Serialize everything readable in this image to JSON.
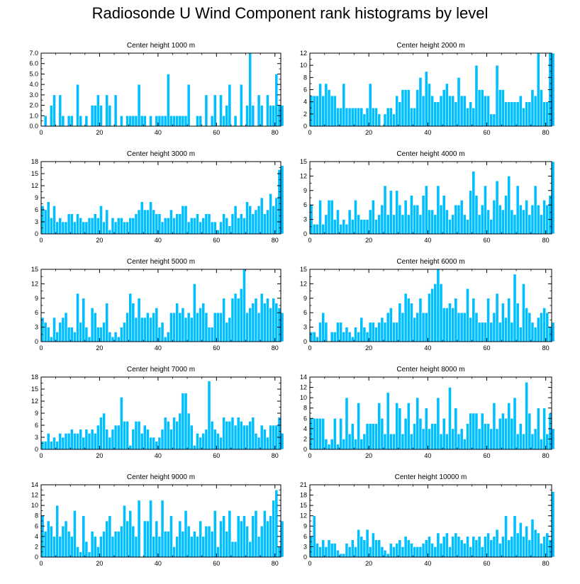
{
  "title": "Radiosonde U Wind Component rank histograms by level",
  "colors": {
    "bar": "#00bfff",
    "bar_edge": "#ffffff",
    "axis": "#000000"
  },
  "chart_data": [
    {
      "type": "bar",
      "title": "Center height 1000 m",
      "xlim": [
        0,
        82
      ],
      "ylim": [
        0,
        7
      ],
      "xticks": [
        0,
        20,
        40,
        60,
        80
      ],
      "yticks": [
        0,
        1,
        2,
        3,
        4,
        5,
        6,
        7
      ],
      "ytick_labels": [
        "0.0",
        "1.0",
        "2.0",
        "3.0",
        "4.0",
        "5.0",
        "6.0",
        "7.0"
      ],
      "values": [
        0,
        1,
        0,
        2,
        3,
        0,
        3,
        1,
        0,
        1,
        1,
        0,
        4,
        1,
        0,
        1,
        0,
        2,
        2,
        3,
        2,
        0,
        3,
        2,
        0,
        3,
        0,
        1,
        0,
        1,
        1,
        1,
        1,
        4,
        1,
        1,
        0,
        1,
        0,
        1,
        1,
        1,
        1,
        5,
        1,
        1,
        1,
        1,
        1,
        1,
        4,
        0,
        0,
        1,
        1,
        0,
        3,
        0,
        1,
        3,
        0,
        3,
        1,
        2,
        4,
        0,
        1,
        0,
        4,
        0,
        2,
        7,
        2,
        0,
        3,
        2,
        0,
        3,
        2,
        2,
        5,
        2,
        2
      ]
    },
    {
      "type": "bar",
      "title": "Center height 2000 m",
      "xlim": [
        0,
        82
      ],
      "ylim": [
        0,
        12
      ],
      "xticks": [
        0,
        20,
        40,
        60,
        80
      ],
      "yticks": [
        0,
        2,
        4,
        6,
        8,
        10,
        12
      ],
      "ytick_labels": [
        "0",
        "2",
        "4",
        "6",
        "8",
        "10",
        "12"
      ],
      "values": [
        5,
        5,
        5,
        7,
        5,
        7,
        6,
        5,
        5,
        3,
        3,
        7,
        3,
        3,
        3,
        3,
        3,
        3,
        2,
        3,
        7,
        3,
        3,
        2,
        0,
        2,
        3,
        3,
        2,
        5,
        4,
        6,
        6,
        6,
        3,
        3,
        6,
        8,
        5,
        9,
        7,
        5,
        4,
        4,
        5,
        6,
        7,
        5,
        5,
        4,
        8,
        5,
        5,
        3,
        4,
        3,
        10,
        6,
        6,
        5,
        5,
        2,
        2,
        10,
        6,
        6,
        4,
        4,
        4,
        4,
        4,
        5,
        3,
        4,
        4,
        6,
        5,
        12,
        6,
        4,
        4,
        12,
        12
      ]
    },
    {
      "type": "bar",
      "title": "Center height 3000 m",
      "xlim": [
        0,
        82
      ],
      "ylim": [
        0,
        18
      ],
      "xticks": [
        0,
        20,
        40,
        60,
        80
      ],
      "yticks": [
        0,
        3,
        6,
        9,
        12,
        15,
        18
      ],
      "ytick_labels": [
        "0",
        "3",
        "6",
        "9",
        "12",
        "15",
        "18"
      ],
      "values": [
        7,
        6,
        8,
        4,
        7,
        3,
        4,
        3,
        3,
        5,
        5,
        3,
        5,
        4,
        3,
        3,
        4,
        4,
        5,
        4,
        7,
        3,
        6,
        1,
        4,
        3,
        4,
        4,
        3,
        3,
        4,
        4,
        5,
        6,
        8,
        6,
        6,
        8,
        6,
        5,
        5,
        3,
        4,
        4,
        6,
        4,
        5,
        5,
        7,
        7,
        3,
        4,
        4,
        5,
        3,
        4,
        5,
        5,
        3,
        3,
        1,
        3,
        5,
        4,
        2,
        5,
        7,
        4,
        5,
        4,
        8,
        7,
        5,
        6,
        7,
        9,
        5,
        6,
        10,
        7,
        9,
        16,
        17
      ]
    },
    {
      "type": "bar",
      "title": "Center height 4000 m",
      "xlim": [
        0,
        82
      ],
      "ylim": [
        0,
        15
      ],
      "xticks": [
        0,
        20,
        40,
        60,
        80
      ],
      "yticks": [
        0,
        3,
        6,
        9,
        12,
        15
      ],
      "ytick_labels": [
        "0",
        "3",
        "6",
        "9",
        "12",
        "15"
      ],
      "values": [
        6,
        2,
        2,
        7,
        2,
        4,
        7,
        7,
        3,
        5,
        2,
        3,
        2,
        5,
        3,
        7,
        4,
        3,
        3,
        3,
        5,
        7,
        3,
        4,
        6,
        10,
        4,
        9,
        4,
        9,
        6,
        4,
        7,
        4,
        8,
        6,
        6,
        4,
        8,
        10,
        5,
        5,
        4,
        10,
        6,
        8,
        5,
        3,
        4,
        6,
        6,
        7,
        4,
        3,
        9,
        13,
        8,
        4,
        6,
        10,
        5,
        3,
        7,
        11,
        6,
        5,
        8,
        12,
        5,
        4,
        10,
        6,
        5,
        7,
        4,
        6,
        10,
        6,
        4,
        7,
        6,
        8,
        15
      ]
    },
    {
      "type": "bar",
      "title": "Center height 5000 m",
      "xlim": [
        0,
        82
      ],
      "ylim": [
        0,
        15
      ],
      "xticks": [
        0,
        20,
        40,
        60,
        80
      ],
      "yticks": [
        0,
        3,
        6,
        9,
        12,
        15
      ],
      "ytick_labels": [
        "0",
        "3",
        "6",
        "9",
        "12",
        "15"
      ],
      "values": [
        5,
        4,
        3,
        1,
        5,
        2,
        4,
        5,
        6,
        3,
        3,
        2,
        10,
        4,
        9,
        3,
        1,
        7,
        6,
        3,
        3,
        4,
        8,
        2,
        1,
        2,
        1,
        3,
        4,
        6,
        10,
        8,
        5,
        9,
        5,
        5,
        6,
        5,
        6,
        7,
        3,
        4,
        1,
        2,
        6,
        6,
        8,
        6,
        7,
        5,
        6,
        5,
        12,
        6,
        7,
        8,
        6,
        3,
        3,
        6,
        6,
        6,
        9,
        4,
        5,
        9,
        10,
        9,
        11,
        15,
        6,
        7,
        8,
        9,
        6,
        10,
        8,
        9,
        7,
        9,
        8,
        7,
        6
      ]
    },
    {
      "type": "bar",
      "title": "Center height 6000 m",
      "xlim": [
        0,
        82
      ],
      "ylim": [
        0,
        15
      ],
      "xticks": [
        0,
        20,
        40,
        60,
        80
      ],
      "yticks": [
        0,
        3,
        6,
        9,
        12,
        15
      ],
      "ytick_labels": [
        "0",
        "3",
        "6",
        "9",
        "12",
        "15"
      ],
      "values": [
        2,
        2,
        1,
        4,
        6,
        4,
        0,
        2,
        2,
        4,
        4,
        2,
        3,
        2,
        1,
        3,
        2,
        5,
        3,
        2,
        4,
        4,
        3,
        4,
        5,
        4,
        6,
        7,
        4,
        4,
        8,
        6,
        10,
        9,
        8,
        5,
        6,
        9,
        6,
        6,
        10,
        11,
        12,
        15,
        12,
        7,
        7,
        8,
        7,
        9,
        6,
        6,
        6,
        11,
        5,
        9,
        6,
        4,
        4,
        4,
        9,
        4,
        6,
        10,
        4,
        8,
        5,
        9,
        4,
        14,
        8,
        3,
        12,
        7,
        6,
        4,
        3,
        5,
        6,
        7,
        6,
        3,
        4
      ]
    },
    {
      "type": "bar",
      "title": "Center height 7000 m",
      "xlim": [
        0,
        82
      ],
      "ylim": [
        0,
        18
      ],
      "xticks": [
        0,
        20,
        40,
        60,
        80
      ],
      "yticks": [
        0,
        3,
        6,
        9,
        12,
        15,
        18
      ],
      "ytick_labels": [
        "0",
        "3",
        "6",
        "9",
        "12",
        "15",
        "18"
      ],
      "values": [
        2,
        2,
        4,
        2,
        3,
        2,
        4,
        3,
        4,
        4,
        5,
        4,
        4,
        5,
        3,
        5,
        4,
        5,
        4,
        6,
        8,
        9,
        5,
        3,
        5,
        6,
        6,
        13,
        7,
        7,
        1,
        5,
        7,
        7,
        4,
        6,
        5,
        3,
        3,
        2,
        3,
        5,
        8,
        7,
        5,
        8,
        7,
        9,
        14,
        14,
        9,
        6,
        1,
        4,
        3,
        4,
        5,
        17,
        7,
        5,
        4,
        3,
        8,
        7,
        7,
        8,
        6,
        8,
        7,
        6,
        6,
        7,
        8,
        4,
        3,
        6,
        5,
        3,
        6,
        6,
        6,
        8,
        4
      ]
    },
    {
      "type": "bar",
      "title": "Center height 8000 m",
      "xlim": [
        0,
        82
      ],
      "ylim": [
        0,
        14
      ],
      "xticks": [
        0,
        20,
        40,
        60,
        80
      ],
      "yticks": [
        0,
        2,
        4,
        6,
        8,
        10,
        12,
        14
      ],
      "ytick_labels": [
        "0",
        "2",
        "4",
        "6",
        "8",
        "10",
        "12",
        "14"
      ],
      "values": [
        6,
        6,
        6,
        6,
        6,
        2,
        1,
        2,
        6,
        1,
        6,
        2,
        10,
        3,
        5,
        2,
        9,
        2,
        3,
        5,
        5,
        5,
        5,
        9,
        6,
        3,
        11,
        3,
        3,
        9,
        8,
        3,
        6,
        9,
        3,
        5,
        10,
        6,
        4,
        8,
        4,
        5,
        5,
        10,
        3,
        6,
        3,
        12,
        4,
        8,
        3,
        4,
        2,
        5,
        7,
        7,
        7,
        4,
        7,
        5,
        5,
        4,
        9,
        4,
        6,
        7,
        6,
        9,
        6,
        10,
        3,
        5,
        3,
        13,
        7,
        3,
        4,
        8,
        2,
        8,
        3,
        7,
        4
      ]
    },
    {
      "type": "bar",
      "title": "Center height 9000 m",
      "xlim": [
        0,
        82
      ],
      "ylim": [
        0,
        14
      ],
      "xticks": [
        0,
        20,
        40,
        60,
        80
      ],
      "yticks": [
        0,
        2,
        4,
        6,
        8,
        10,
        12,
        14
      ],
      "ytick_labels": [
        "0",
        "2",
        "4",
        "6",
        "8",
        "10",
        "12",
        "14"
      ],
      "values": [
        8,
        5,
        7,
        6,
        4,
        10,
        4,
        6,
        7,
        5,
        4,
        9,
        2,
        1,
        8,
        3,
        1,
        5,
        4,
        2,
        4,
        5,
        7,
        8,
        4,
        5,
        5,
        6,
        10,
        7,
        9,
        6,
        4,
        11,
        0,
        7,
        7,
        11,
        4,
        7,
        4,
        11,
        5,
        5,
        8,
        2,
        4,
        7,
        5,
        9,
        6,
        4,
        5,
        4,
        7,
        4,
        6,
        6,
        5,
        9,
        2,
        7,
        8,
        5,
        9,
        3,
        3,
        8,
        7,
        8,
        6,
        3,
        8,
        9,
        4,
        6,
        9,
        7,
        8,
        11,
        13,
        2,
        7
      ]
    },
    {
      "type": "bar",
      "title": "Center height 10000 m",
      "xlim": [
        0,
        82
      ],
      "ylim": [
        0,
        21
      ],
      "xticks": [
        0,
        20,
        40,
        60,
        80
      ],
      "yticks": [
        0,
        3,
        6,
        9,
        12,
        15,
        18,
        21
      ],
      "ytick_labels": [
        "0",
        "3",
        "6",
        "9",
        "12",
        "15",
        "18",
        "21"
      ],
      "values": [
        6,
        12,
        4,
        3,
        5,
        3,
        5,
        4,
        4,
        2,
        1,
        1,
        4,
        3,
        5,
        3,
        8,
        6,
        5,
        8,
        3,
        7,
        5,
        5,
        3,
        2,
        1,
        4,
        3,
        4,
        5,
        3,
        6,
        5,
        4,
        3,
        3,
        3,
        4,
        5,
        6,
        4,
        3,
        7,
        4,
        6,
        7,
        3,
        6,
        7,
        6,
        5,
        4,
        6,
        3,
        6,
        5,
        6,
        3,
        6,
        7,
        5,
        6,
        8,
        4,
        6,
        12,
        5,
        6,
        12,
        7,
        10,
        6,
        9,
        5,
        11,
        8,
        7,
        4,
        6,
        7,
        5,
        19
      ]
    }
  ]
}
